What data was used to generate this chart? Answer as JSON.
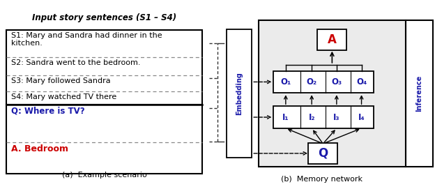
{
  "title": "Input story sentences (S1 – S4)",
  "sentences": [
    "S1: Mary and Sandra had dinner in the\nkitchen.",
    "S2: Sandra went to the bedroom.",
    "S3: Mary followed Sandra",
    "S4: Mary watched TV there"
  ],
  "question_text": "Q: Where is TV?",
  "answer_text": "A. Bedroom",
  "caption_a": "(a)  Example scenario",
  "caption_b": "(b)  Memory network",
  "embedding_label": "Embedding",
  "inference_label": "Inference",
  "O_labels": [
    "O₁",
    "O₂",
    "O₃",
    "O₄"
  ],
  "I_labels": [
    "I₁",
    "I₂",
    "I₃",
    "I₄"
  ],
  "A_label": "A",
  "Q_label": "Q",
  "bg_color": "#ffffff",
  "gray_bg": "#ebebeb",
  "text_color_black": "#000000",
  "text_color_blue": "#1a1aaa",
  "text_color_red": "#cc0000",
  "question_color": "#1a1aaa",
  "answer_color": "#cc0000",
  "dashed_brace_color": "#333333"
}
